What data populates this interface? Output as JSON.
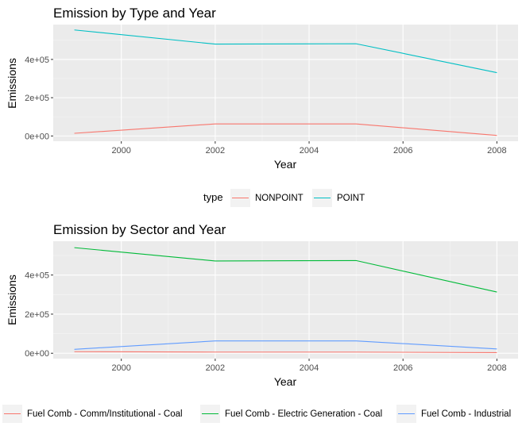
{
  "chart_data": [
    {
      "type": "line",
      "title": "Emission by Type and Year",
      "xlabel": "Year",
      "ylabel": "Emissions",
      "x": [
        1999,
        2002,
        2005,
        2008
      ],
      "x_ticks": [
        2000,
        2002,
        2004,
        2006,
        2008
      ],
      "x_tick_labels": [
        "2000",
        "2002",
        "2004",
        "2006",
        "2008"
      ],
      "xlim": [
        1998.55,
        2008.45
      ],
      "y_ticks": [
        0,
        200000,
        400000
      ],
      "y_tick_labels": [
        "0e+00",
        "2e+05",
        "4e+05"
      ],
      "ylim": [
        -27500,
        582000
      ],
      "grid": true,
      "legend_position": "bottom",
      "legend_title": "type",
      "series": [
        {
          "name": "NONPOINT",
          "color": "#F8766D",
          "values": [
            14000,
            63000,
            63000,
            3000
          ]
        },
        {
          "name": "POINT",
          "color": "#00BFC4",
          "values": [
            554000,
            480000,
            482000,
            331000
          ]
        }
      ]
    },
    {
      "type": "line",
      "title": "Emission by Sector and Year",
      "xlabel": "Year",
      "ylabel": "Emissions",
      "x": [
        1999,
        2002,
        2005,
        2008
      ],
      "x_ticks": [
        2000,
        2002,
        2004,
        2006,
        2008
      ],
      "x_tick_labels": [
        "2000",
        "2002",
        "2004",
        "2006",
        "2008"
      ],
      "xlim": [
        1998.55,
        2008.45
      ],
      "y_ticks": [
        0,
        200000,
        400000
      ],
      "y_tick_labels": [
        "0e+00",
        "2e+05",
        "4e+05"
      ],
      "ylim": [
        -27500,
        573000
      ],
      "grid": true,
      "legend_position": "bottom",
      "legend_title": "",
      "series": [
        {
          "name": "Fuel Comb - Comm/Institutional - Coal",
          "color": "#F8766D",
          "values": [
            8000,
            6000,
            6000,
            3000
          ]
        },
        {
          "name": "Fuel Comb - Electric Generation - Coal",
          "color": "#00BA38",
          "values": [
            540000,
            472000,
            474000,
            313000
          ]
        },
        {
          "name": "Fuel Comb - Industrial",
          "color": "#619CFF",
          "values": [
            20000,
            63000,
            63000,
            22000
          ]
        }
      ]
    }
  ]
}
